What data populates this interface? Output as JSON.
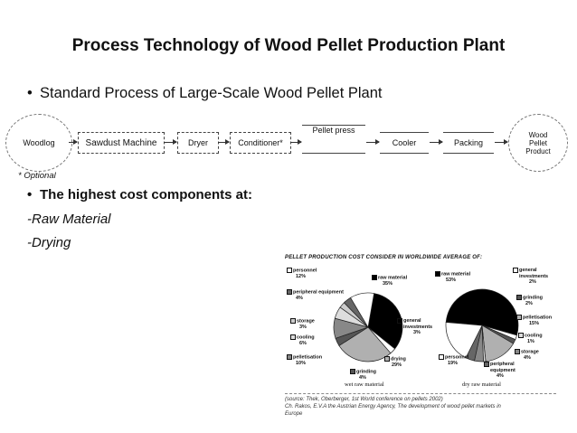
{
  "slide": {
    "title": "Process Technology of Wood Pellet Production Plant",
    "bullet1": "Standard Process of Large-Scale Wood Pellet Plant",
    "bullet2": "The highest cost components at:",
    "items": [
      "-Raw Material",
      "-Drying"
    ],
    "optional_note": "* Optional"
  },
  "flow": {
    "nodes": [
      "Woodlog",
      "Sawdust Machine",
      "Dryer",
      "Conditioner*",
      "Pellet press",
      "Cooler",
      "Packing",
      "Wood Pellet Product"
    ]
  },
  "figure": {
    "title": "PELLET PRODUCTION COST CONSIDER IN WORLDWIDE AVERAGE OF:",
    "wet": {
      "caption": "wet raw material",
      "slices": [
        {
          "label": "raw material",
          "pct": "35%",
          "value": 35,
          "fill": "#000000"
        },
        {
          "label": "general investments",
          "pct": "3%",
          "value": 3,
          "fill": "#ffffff"
        },
        {
          "label": "drying",
          "pct": "29%",
          "value": 29,
          "fill": "#b0b0b0"
        },
        {
          "label": "grinding",
          "pct": "4%",
          "value": 4,
          "fill": "#555555"
        },
        {
          "label": "pelletisation",
          "pct": "10%",
          "value": 10,
          "fill": "#888888"
        },
        {
          "label": "cooling",
          "pct": "6%",
          "value": 6,
          "fill": "#dddddd"
        },
        {
          "label": "storage",
          "pct": "3%",
          "value": 3,
          "fill": "#cccccc"
        },
        {
          "label": "peripheral equipment",
          "pct": "4%",
          "value": 4,
          "fill": "#666666"
        },
        {
          "label": "personnel",
          "pct": "12%",
          "value": 12,
          "fill": "#ffffff"
        }
      ]
    },
    "dry": {
      "caption": "dry raw material",
      "slices": [
        {
          "label": "raw material",
          "pct": "53%",
          "value": 53,
          "fill": "#000000"
        },
        {
          "label": "general investments",
          "pct": "2%",
          "value": 2,
          "fill": "#ffffff"
        },
        {
          "label": "grinding",
          "pct": "2%",
          "value": 2,
          "fill": "#555555"
        },
        {
          "label": "pelletisation",
          "pct": "15%",
          "value": 15,
          "fill": "#b0b0b0"
        },
        {
          "label": "cooling",
          "pct": "1%",
          "value": 1,
          "fill": "#dddddd"
        },
        {
          "label": "storage",
          "pct": "4%",
          "value": 4,
          "fill": "#888888"
        },
        {
          "label": "peripheral equipment",
          "pct": "4%",
          "value": 4,
          "fill": "#666666"
        },
        {
          "label": "personnel",
          "pct": "19%",
          "value": 19,
          "fill": "#ffffff"
        }
      ]
    },
    "source_lines": [
      "(source: Thek, Oberberger, 1st World conference on pellets 2002)",
      "Ch. Rakos, E.V.A the Austrian Energy Agency, The development of wood pellet markets in",
      "Europe"
    ]
  }
}
